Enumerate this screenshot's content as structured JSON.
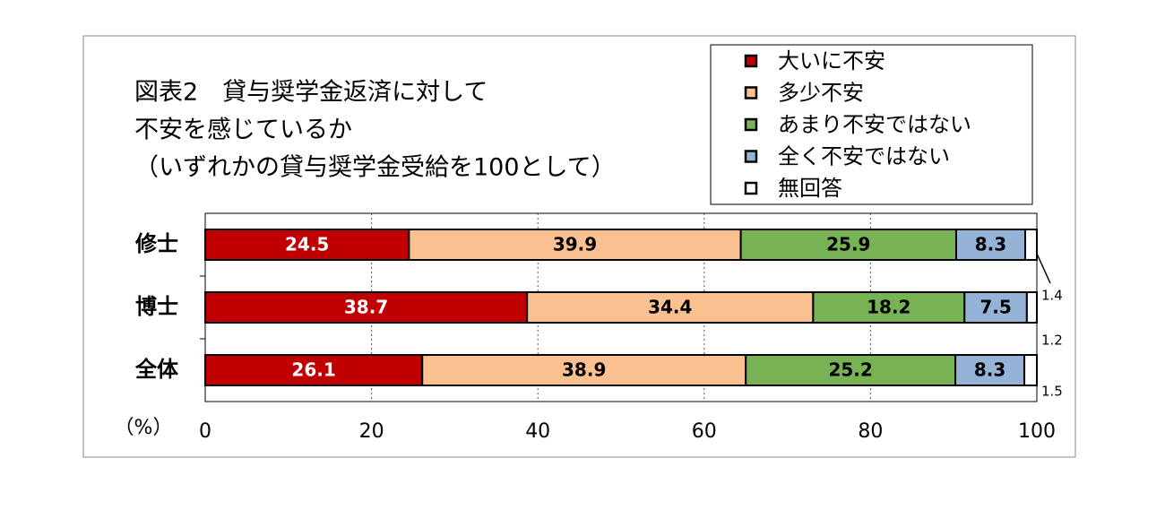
{
  "chart_data": {
    "type": "stacked_bar_horizontal",
    "title": [
      "図表2　貸与奨学金返済に対して",
      "不安を感じているか",
      "（いずれかの貸与奨学金受給を100として）"
    ],
    "x_label": "（%）",
    "categories": [
      "修士",
      "博士",
      "全体"
    ],
    "series": [
      {
        "name": "大いに不安",
        "color": "#c00000",
        "values": [
          24.5,
          38.7,
          26.1
        ]
      },
      {
        "name": "多少不安",
        "color": "#fac090",
        "values": [
          39.9,
          34.4,
          38.9
        ]
      },
      {
        "name": "あまり不安ではない",
        "color": "#77b255",
        "values": [
          25.9,
          18.2,
          25.2
        ]
      },
      {
        "name": "全く不安ではない",
        "color": "#95b3d7",
        "values": [
          8.3,
          7.5,
          8.3
        ]
      },
      {
        "name": "無回答",
        "color": "#ffffff",
        "values": [
          1.4,
          1.2,
          1.5
        ]
      }
    ],
    "xlim": [
      0,
      100
    ],
    "xticks": [
      0,
      20,
      40,
      60,
      80,
      100
    ],
    "grid": true
  }
}
